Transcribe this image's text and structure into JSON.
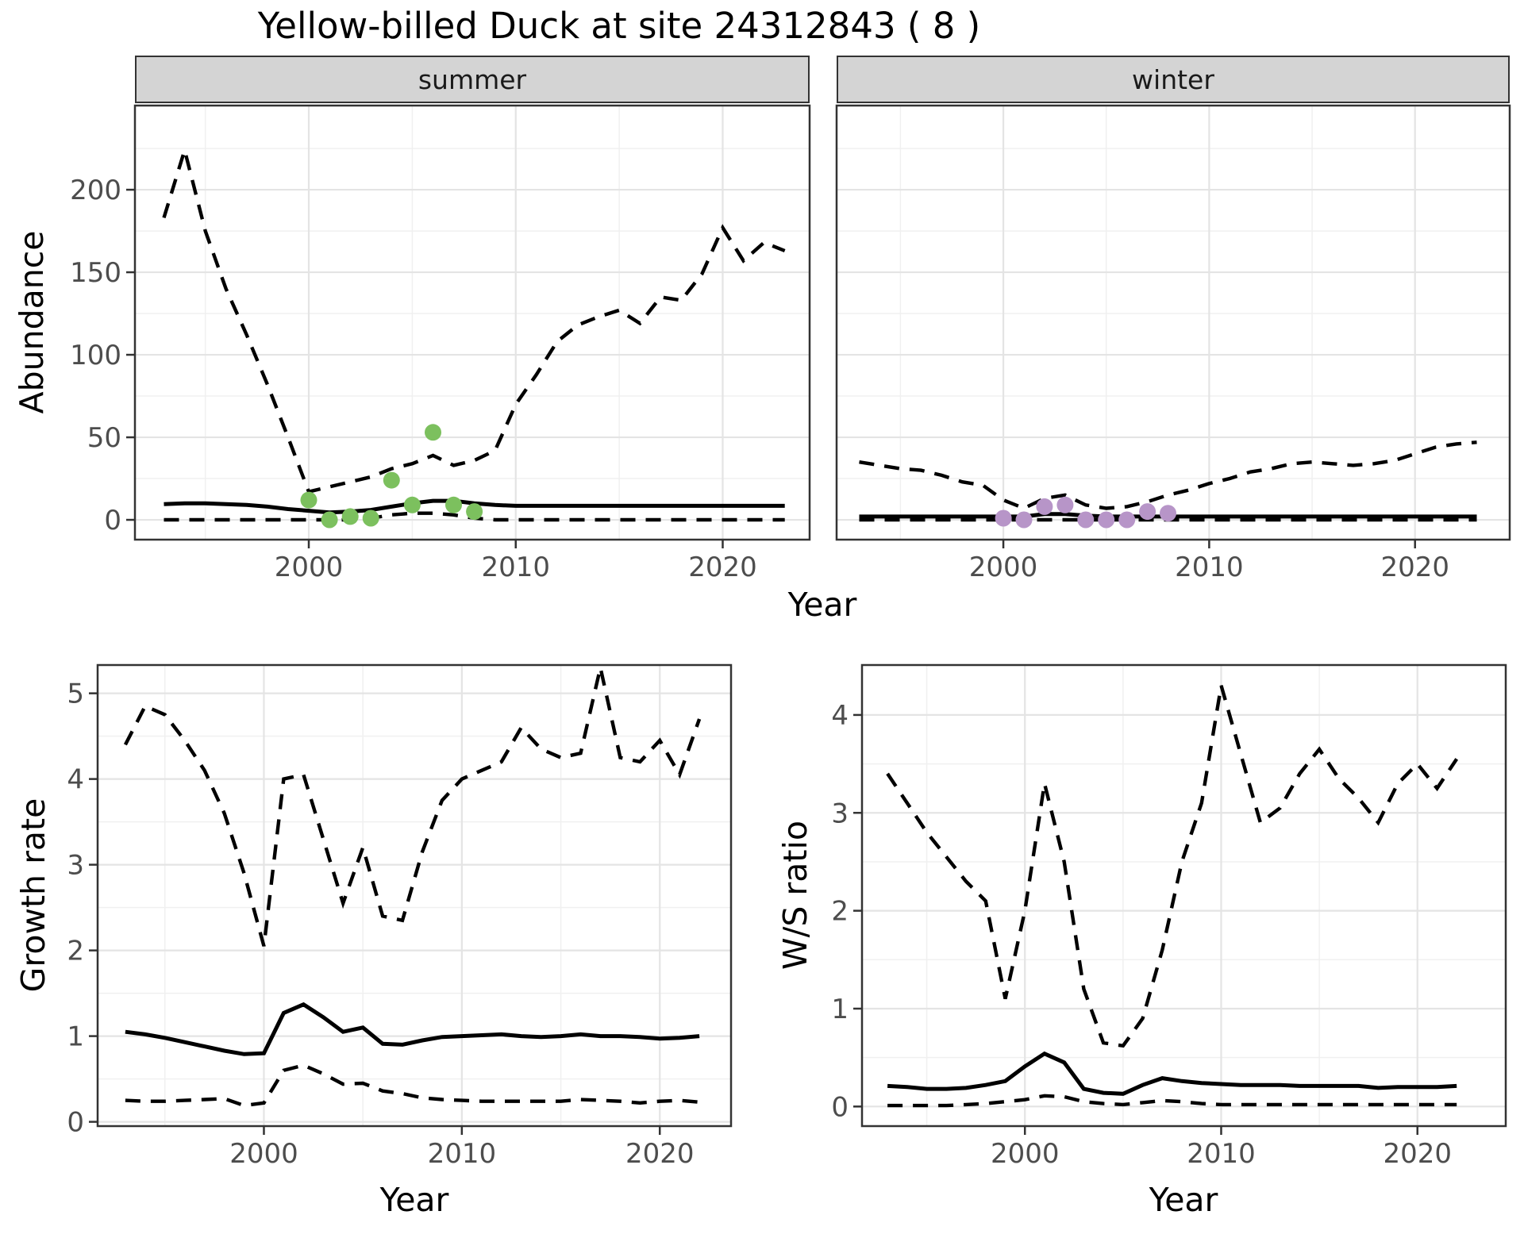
{
  "title": "Yellow-billed Duck at site 24312843 ( 8 )",
  "colors": {
    "line": "#000000",
    "summer_point": "#7cc05e",
    "winter_point": "#b795c8",
    "grid_major": "#e4e4e4",
    "grid_minor": "#f0f0f0",
    "panel_border": "#333333",
    "strip_fill": "#d4d4d4",
    "tick_label": "#4d4d4d",
    "background": "#ffffff"
  },
  "chart_data": [
    {
      "id": "summer",
      "type": "line",
      "facet_label": "summer",
      "xlabel": "Year",
      "ylabel": "Abundance",
      "xlim": [
        1991.6,
        2024.2
      ],
      "ylim": [
        -12,
        251
      ],
      "xticks": [
        2000,
        2010,
        2020
      ],
      "yticks": [
        0,
        50,
        100,
        150,
        200
      ],
      "x_minor": [
        1995,
        2005,
        2015
      ],
      "y_minor": [
        25,
        75,
        125,
        175,
        225
      ],
      "x": [
        1993,
        1994,
        1995,
        1996,
        1997,
        1998,
        1999,
        2000,
        2001,
        2002,
        2003,
        2004,
        2005,
        2006,
        2007,
        2008,
        2009,
        2010,
        2011,
        2012,
        2013,
        2014,
        2015,
        2016,
        2017,
        2018,
        2019,
        2020,
        2021,
        2022,
        2023
      ],
      "series": [
        {
          "name": "upper_95ci",
          "style": "dashed",
          "values": [
            183,
            224,
            175,
            140,
            112,
            82,
            50,
            17,
            20,
            23,
            26,
            31,
            34,
            39,
            33,
            36,
            42,
            70,
            88,
            108,
            118,
            123,
            127,
            119,
            135,
            133,
            149,
            177,
            157,
            168,
            163
          ]
        },
        {
          "name": "median",
          "style": "solid",
          "values": [
            9.5,
            10,
            10,
            9.5,
            9,
            8,
            6.5,
            5.5,
            4.5,
            5,
            6,
            8,
            10,
            11.5,
            11.5,
            10,
            9,
            8.5,
            8.5,
            8.5,
            8.5,
            8.5,
            8.5,
            8.5,
            8.5,
            8.5,
            8.5,
            8.5,
            8.5,
            8.5,
            8.5
          ]
        },
        {
          "name": "lower_95ci",
          "style": "dashed",
          "values": [
            0,
            0,
            0,
            0,
            0,
            0,
            0,
            0,
            0,
            0,
            1,
            3,
            4,
            4,
            3,
            1,
            0,
            0,
            0,
            0,
            0,
            0,
            0,
            0,
            0,
            0,
            0,
            0,
            0,
            0,
            0
          ]
        }
      ],
      "points": {
        "label": "observed summer counts",
        "color": "#7cc05e",
        "x": [
          2000,
          2001,
          2002,
          2003,
          2004,
          2005,
          2006,
          2007,
          2008
        ],
        "y": [
          12,
          0,
          2,
          1,
          24,
          9,
          53,
          9,
          5
        ]
      }
    },
    {
      "id": "winter",
      "type": "line",
      "facet_label": "winter",
      "xlabel": "Year",
      "ylabel": "Abundance",
      "xlim": [
        1991.9,
        2024.6
      ],
      "ylim": [
        -12,
        251
      ],
      "xticks": [
        2000,
        2010,
        2020
      ],
      "yticks": [],
      "x_minor": [
        1995,
        2005,
        2015
      ],
      "y_minor": [
        25,
        75,
        125,
        175,
        225
      ],
      "y_grid_major": [
        0,
        50,
        100,
        150,
        200
      ],
      "x": [
        1993,
        1994,
        1995,
        1996,
        1997,
        1998,
        1999,
        2000,
        2001,
        2002,
        2003,
        2004,
        2005,
        2006,
        2007,
        2008,
        2009,
        2010,
        2011,
        2012,
        2013,
        2014,
        2015,
        2016,
        2017,
        2018,
        2019,
        2020,
        2021,
        2022,
        2023
      ],
      "series": [
        {
          "name": "upper_95ci",
          "style": "dashed",
          "values": [
            35,
            33,
            31,
            30,
            27,
            23,
            21,
            12,
            7,
            13,
            15,
            9,
            7,
            8,
            11,
            15,
            18,
            22,
            25,
            29,
            31,
            34,
            35,
            34,
            33,
            34,
            36,
            40,
            44,
            46,
            47
          ]
        },
        {
          "name": "median",
          "style": "solid",
          "values": [
            2,
            2,
            2,
            2,
            2,
            2,
            2,
            2,
            2,
            3.5,
            3.5,
            2.5,
            2,
            2,
            2,
            2,
            2,
            2,
            2,
            2,
            2,
            2,
            2,
            2,
            2,
            2,
            2,
            2,
            2,
            2,
            2
          ]
        },
        {
          "name": "lower_95ci",
          "style": "dashed",
          "values": [
            0,
            0,
            0,
            0,
            0,
            0,
            0,
            0,
            0,
            0,
            0,
            0,
            0,
            0,
            0,
            0,
            0,
            0,
            0,
            0,
            0,
            0,
            0,
            0,
            0,
            0,
            0,
            0,
            0,
            0,
            0
          ]
        }
      ],
      "points": {
        "label": "observed winter counts",
        "color": "#b795c8",
        "x": [
          2000,
          2001,
          2002,
          2003,
          2004,
          2005,
          2006,
          2007,
          2008
        ],
        "y": [
          1,
          0,
          8,
          9,
          0,
          0,
          0,
          5,
          4
        ]
      }
    },
    {
      "id": "growth",
      "type": "line",
      "facet_label": "",
      "xlabel": "Year",
      "ylabel": "Growth rate",
      "xlim": [
        1991.6,
        2023.6
      ],
      "ylim": [
        -0.05,
        5.33
      ],
      "xticks": [
        2000,
        2010,
        2020
      ],
      "yticks": [
        0,
        1,
        2,
        3,
        4,
        5
      ],
      "x_minor": [
        1995,
        2005,
        2015
      ],
      "y_minor": [
        0.5,
        1.5,
        2.5,
        3.5,
        4.5
      ],
      "x": [
        1993,
        1994,
        1995,
        1996,
        1997,
        1998,
        1999,
        2000,
        2001,
        2002,
        2003,
        2004,
        2005,
        2006,
        2007,
        2008,
        2009,
        2010,
        2011,
        2012,
        2013,
        2014,
        2015,
        2016,
        2017,
        2018,
        2019,
        2020,
        2021,
        2022
      ],
      "series": [
        {
          "name": "upper_95ci",
          "style": "dashed",
          "values": [
            4.4,
            4.85,
            4.75,
            4.45,
            4.1,
            3.6,
            2.9,
            2.05,
            4.0,
            4.05,
            3.3,
            2.55,
            3.2,
            2.4,
            2.35,
            3.15,
            3.75,
            4.0,
            4.1,
            4.2,
            4.6,
            4.35,
            4.25,
            4.3,
            5.3,
            4.25,
            4.2,
            4.45,
            4.05,
            4.7
          ]
        },
        {
          "name": "median",
          "style": "solid",
          "values": [
            1.05,
            1.02,
            0.98,
            0.93,
            0.88,
            0.83,
            0.79,
            0.8,
            1.27,
            1.37,
            1.22,
            1.05,
            1.1,
            0.91,
            0.9,
            0.95,
            0.99,
            1.0,
            1.01,
            1.02,
            1.0,
            0.99,
            1.0,
            1.02,
            1.0,
            1.0,
            0.99,
            0.97,
            0.98,
            1.0
          ]
        },
        {
          "name": "lower_95ci",
          "style": "dashed",
          "values": [
            0.25,
            0.24,
            0.24,
            0.25,
            0.26,
            0.27,
            0.19,
            0.22,
            0.6,
            0.66,
            0.56,
            0.44,
            0.45,
            0.36,
            0.33,
            0.28,
            0.26,
            0.25,
            0.24,
            0.24,
            0.24,
            0.24,
            0.24,
            0.26,
            0.25,
            0.24,
            0.22,
            0.24,
            0.25,
            0.23
          ]
        }
      ],
      "points": null
    },
    {
      "id": "ws",
      "type": "line",
      "facet_label": "",
      "xlabel": "Year",
      "ylabel": "W/S ratio",
      "xlim": [
        1991.7,
        2024.5
      ],
      "ylim": [
        -0.2,
        4.51
      ],
      "xticks": [
        2000,
        2010,
        2020
      ],
      "yticks": [
        0,
        1,
        2,
        3,
        4
      ],
      "x_minor": [
        1995,
        2005,
        2015
      ],
      "y_minor": [
        0.5,
        1.5,
        2.5,
        3.5
      ],
      "x": [
        1993,
        1994,
        1995,
        1996,
        1997,
        1998,
        1999,
        2000,
        2001,
        2002,
        2003,
        2004,
        2005,
        2006,
        2007,
        2008,
        2009,
        2010,
        2011,
        2012,
        2013,
        2014,
        2015,
        2016,
        2017,
        2018,
        2019,
        2020,
        2021,
        2022
      ],
      "series": [
        {
          "name": "upper_95ci",
          "style": "dashed",
          "values": [
            3.4,
            3.1,
            2.8,
            2.55,
            2.3,
            2.1,
            1.1,
            2.0,
            3.3,
            2.5,
            1.2,
            0.65,
            0.62,
            0.9,
            1.6,
            2.5,
            3.1,
            4.3,
            3.6,
            2.9,
            3.05,
            3.4,
            3.65,
            3.35,
            3.15,
            2.9,
            3.3,
            3.5,
            3.25,
            3.55
          ]
        },
        {
          "name": "median",
          "style": "solid",
          "values": [
            0.21,
            0.2,
            0.18,
            0.18,
            0.19,
            0.22,
            0.26,
            0.41,
            0.54,
            0.45,
            0.18,
            0.14,
            0.13,
            0.22,
            0.29,
            0.26,
            0.24,
            0.23,
            0.22,
            0.22,
            0.22,
            0.21,
            0.21,
            0.21,
            0.21,
            0.19,
            0.2,
            0.2,
            0.2,
            0.21
          ]
        },
        {
          "name": "lower_95ci",
          "style": "dashed",
          "values": [
            0.01,
            0.01,
            0.01,
            0.01,
            0.02,
            0.03,
            0.05,
            0.07,
            0.11,
            0.1,
            0.05,
            0.03,
            0.02,
            0.04,
            0.06,
            0.05,
            0.03,
            0.02,
            0.02,
            0.02,
            0.02,
            0.02,
            0.02,
            0.02,
            0.02,
            0.02,
            0.02,
            0.02,
            0.02,
            0.02
          ]
        }
      ],
      "points": null
    }
  ]
}
